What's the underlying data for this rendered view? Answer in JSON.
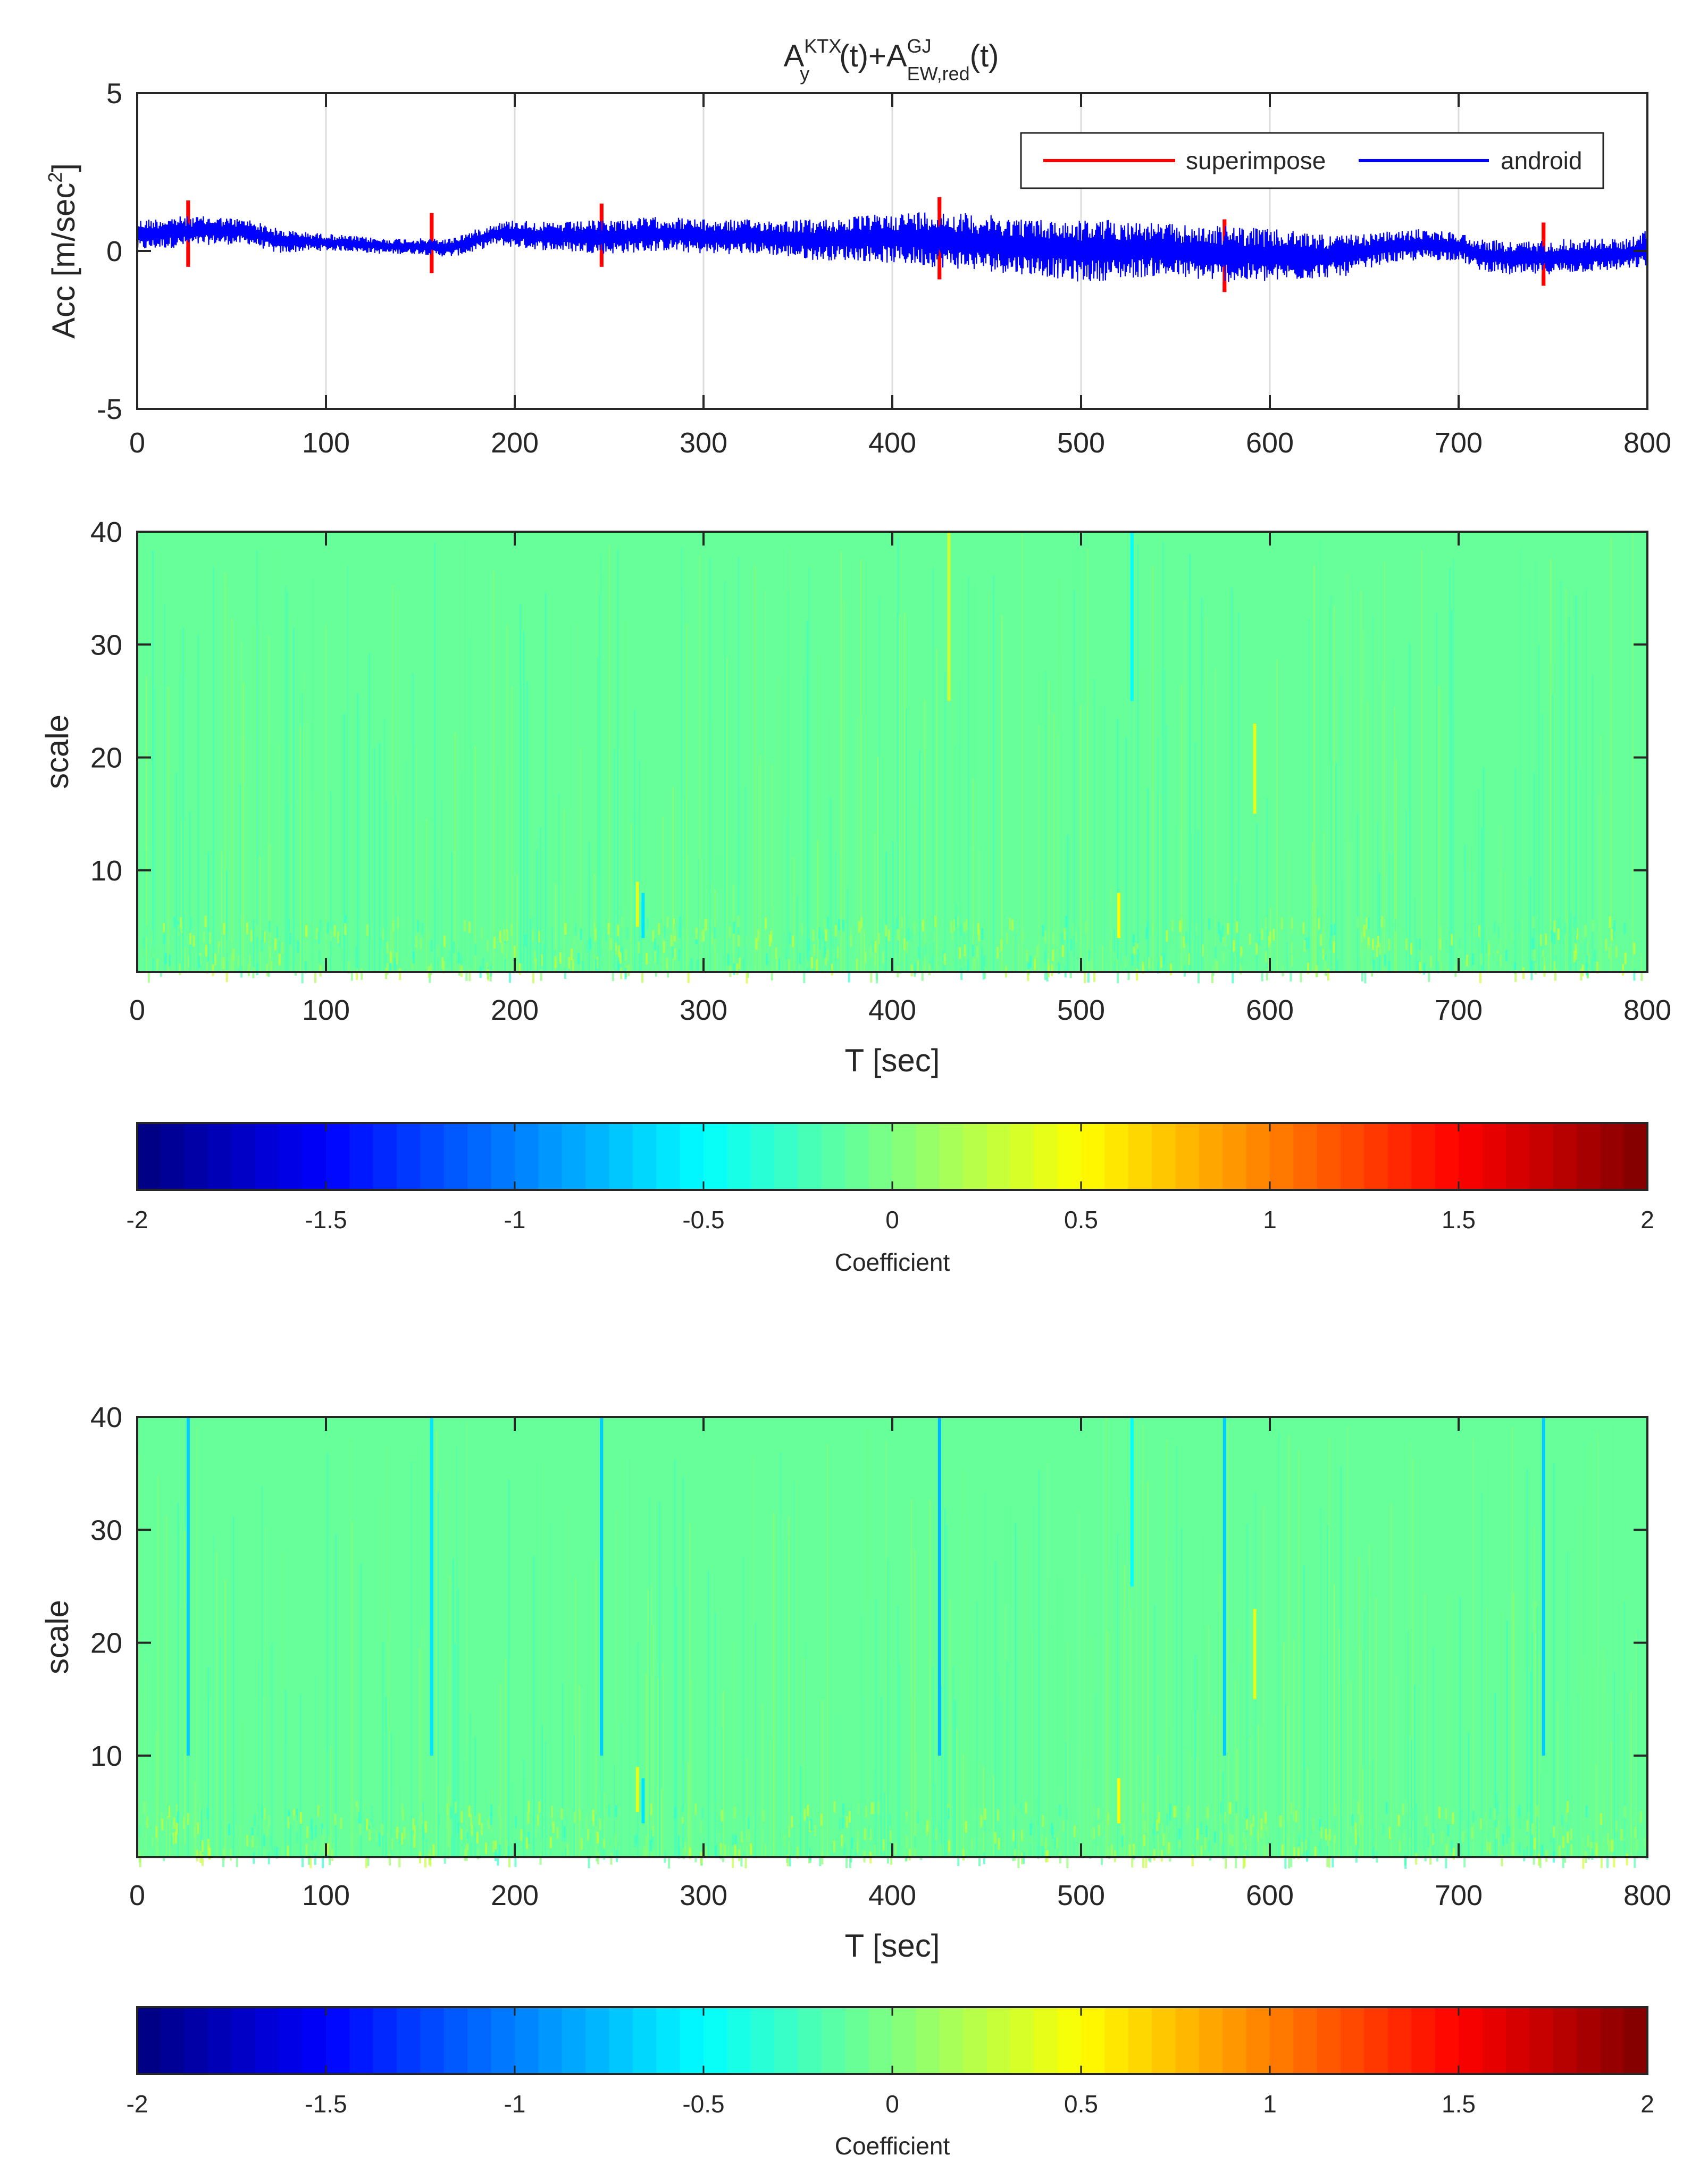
{
  "chart_data": [
    {
      "type": "line",
      "title_parts": {
        "a": "A",
        "a_sup": "KTX",
        "a_sub": "y",
        "mid": "(t)+A",
        "b_sup": "GJ",
        "b_sub": "EW,red",
        "end": "(t)"
      },
      "ylabel_main": "Acc [m/sec",
      "ylabel_sup": "2",
      "ylabel_end": "]",
      "xlim": [
        0,
        800
      ],
      "ylim": [
        -5,
        5
      ],
      "xticks": [
        "0",
        "100",
        "200",
        "300",
        "400",
        "500",
        "600",
        "700",
        "800"
      ],
      "yticks": [
        "5",
        "0",
        "-5"
      ],
      "xgrid": true,
      "legend_position": "top-right",
      "series": [
        {
          "name": "superimpose",
          "color": "#ff0000",
          "spikes": [
            {
              "x": 27,
              "min": -0.5,
              "max": 1.6
            },
            {
              "x": 156,
              "min": -0.7,
              "max": 1.2
            },
            {
              "x": 246,
              "min": -0.5,
              "max": 1.5
            },
            {
              "x": 425,
              "min": -0.9,
              "max": 1.7
            },
            {
              "x": 576,
              "min": -1.3,
              "max": 1.0
            },
            {
              "x": 745,
              "min": -1.1,
              "max": 0.9
            }
          ]
        },
        {
          "name": "android",
          "color": "#0000ff",
          "envelope_x": [
            0,
            20,
            40,
            60,
            75,
            90,
            110,
            130,
            150,
            165,
            175,
            190,
            200,
            220,
            250,
            280,
            300,
            330,
            360,
            380,
            400,
            420,
            440,
            460,
            480,
            500,
            520,
            540,
            560,
            580,
            600,
            620,
            640,
            660,
            680,
            700,
            710,
            730,
            760,
            790,
            800
          ],
          "envelope_min": [
            0.0,
            0.1,
            0.2,
            0.2,
            -0.1,
            0.0,
            0.0,
            -0.1,
            -0.1,
            -0.2,
            -0.1,
            0.2,
            0.1,
            0.0,
            -0.1,
            0.0,
            -0.1,
            -0.1,
            -0.3,
            -0.3,
            -0.4,
            -0.5,
            -0.6,
            -0.7,
            -0.8,
            -1.0,
            -0.9,
            -0.8,
            -0.9,
            -1.0,
            -1.0,
            -0.9,
            -0.8,
            -0.4,
            -0.3,
            -0.3,
            -0.6,
            -0.8,
            -0.7,
            -0.6,
            -0.5
          ],
          "envelope_max": [
            1.0,
            1.1,
            1.1,
            1.0,
            0.7,
            0.6,
            0.5,
            0.4,
            0.4,
            0.4,
            0.6,
            0.9,
            1.0,
            0.9,
            1.0,
            1.1,
            1.0,
            1.0,
            1.0,
            1.1,
            1.2,
            1.3,
            1.2,
            1.1,
            1.0,
            1.0,
            1.0,
            0.9,
            0.8,
            0.8,
            0.7,
            0.6,
            0.5,
            0.6,
            0.7,
            0.6,
            0.4,
            0.3,
            0.4,
            0.4,
            0.7
          ]
        }
      ]
    },
    {
      "type": "heatmap",
      "xlabel": "T [sec]",
      "ylabel": "scale",
      "xlim": [
        0,
        800
      ],
      "ylim": [
        1,
        40
      ],
      "xticks": [
        "0",
        "100",
        "200",
        "300",
        "400",
        "500",
        "600",
        "700",
        "800"
      ],
      "yticks": [
        "40",
        "30",
        "20",
        "10"
      ],
      "background_value": -0.1,
      "features": [
        {
          "x": 265,
          "y_from": 5,
          "y_to": 9,
          "value": 0.4
        },
        {
          "x": 268,
          "y_from": 4,
          "y_to": 8,
          "value": -0.6
        },
        {
          "x": 520,
          "y_from": 4,
          "y_to": 8,
          "value": 0.5
        },
        {
          "x": 592,
          "y_from": 15,
          "y_to": 23,
          "value": 0.4
        },
        {
          "x": 430,
          "y_from": 25,
          "y_to": 40,
          "value": 0.3
        },
        {
          "x": 527,
          "y_from": 25,
          "y_to": 40,
          "value": -0.5
        }
      ],
      "colorbar": {
        "label": "Coefficient",
        "range": [
          -2,
          2
        ],
        "ticks": [
          "-2",
          "-1.5",
          "-1",
          "-0.5",
          "0",
          "0.5",
          "1",
          "1.5",
          "2"
        ]
      }
    },
    {
      "type": "heatmap",
      "xlabel": "T [sec]",
      "ylabel": "scale",
      "xlim": [
        0,
        800
      ],
      "ylim": [
        1,
        40
      ],
      "xticks": [
        "0",
        "100",
        "200",
        "300",
        "400",
        "500",
        "600",
        "700",
        "800"
      ],
      "yticks": [
        "40",
        "30",
        "20",
        "10"
      ],
      "background_value": -0.1,
      "features": [
        {
          "x": 27,
          "y_from": 10,
          "y_to": 40,
          "value": -0.7
        },
        {
          "x": 156,
          "y_from": 10,
          "y_to": 40,
          "value": -0.6
        },
        {
          "x": 246,
          "y_from": 10,
          "y_to": 40,
          "value": -0.7
        },
        {
          "x": 425,
          "y_from": 10,
          "y_to": 40,
          "value": -0.8
        },
        {
          "x": 576,
          "y_from": 10,
          "y_to": 40,
          "value": -0.7
        },
        {
          "x": 745,
          "y_from": 10,
          "y_to": 40,
          "value": -0.7
        },
        {
          "x": 265,
          "y_from": 5,
          "y_to": 9,
          "value": 0.4
        },
        {
          "x": 268,
          "y_from": 4,
          "y_to": 8,
          "value": -0.6
        },
        {
          "x": 520,
          "y_from": 4,
          "y_to": 8,
          "value": 0.5
        },
        {
          "x": 592,
          "y_from": 15,
          "y_to": 23,
          "value": 0.4
        },
        {
          "x": 527,
          "y_from": 25,
          "y_to": 40,
          "value": -0.5
        }
      ],
      "colorbar": {
        "label": "Coefficient",
        "range": [
          -2,
          2
        ],
        "ticks": [
          "-2",
          "-1.5",
          "-1",
          "-0.5",
          "0",
          "0.5",
          "1",
          "1.5",
          "2"
        ]
      }
    }
  ]
}
